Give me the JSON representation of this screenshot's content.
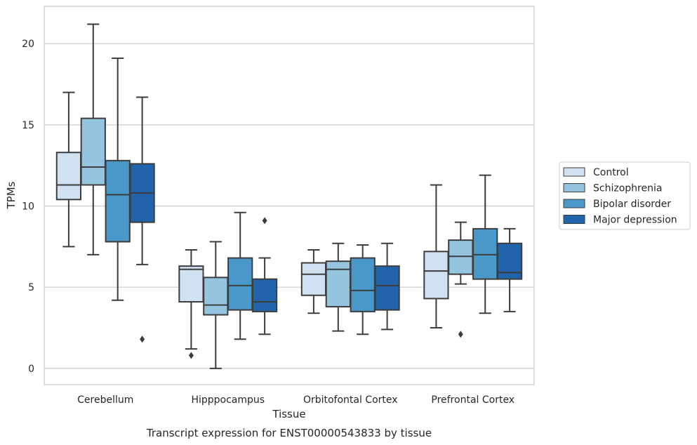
{
  "chart_data": {
    "type": "boxplot",
    "caption": "Transcript expression for ENST00000543833 by tissue",
    "xlabel": "Tissue",
    "ylabel": "TPMs",
    "ylim": [
      -1,
      22.3
    ],
    "yticks": [
      0,
      5,
      10,
      15,
      20
    ],
    "grid": "horizontal",
    "legend_placement": "right",
    "categories": [
      "Cerebellum",
      "Hipppocampus",
      "Orbitofontal Cortex",
      "Prefrontal Cortex"
    ],
    "series": [
      {
        "name": "Control",
        "color": "#d0e1f2",
        "boxes": [
          {
            "whisker_low": 7.5,
            "q1": 10.4,
            "median": 11.3,
            "q3": 13.3,
            "whisker_high": 17.0,
            "outliers": []
          },
          {
            "whisker_low": 1.2,
            "q1": 4.1,
            "median": 6.1,
            "q3": 6.3,
            "whisker_high": 7.3,
            "outliers": [
              0.8
            ]
          },
          {
            "whisker_low": 3.4,
            "q1": 4.5,
            "median": 5.8,
            "q3": 6.5,
            "whisker_high": 7.3,
            "outliers": []
          },
          {
            "whisker_low": 2.5,
            "q1": 4.3,
            "median": 6.0,
            "q3": 7.2,
            "whisker_high": 11.3,
            "outliers": []
          }
        ]
      },
      {
        "name": "Schizophrenia",
        "color": "#94c4df",
        "boxes": [
          {
            "whisker_low": 7.0,
            "q1": 11.3,
            "median": 12.4,
            "q3": 15.4,
            "whisker_high": 21.2,
            "outliers": []
          },
          {
            "whisker_low": 0.0,
            "q1": 3.3,
            "median": 3.9,
            "q3": 5.6,
            "whisker_high": 7.8,
            "outliers": []
          },
          {
            "whisker_low": 2.3,
            "q1": 3.8,
            "median": 6.1,
            "q3": 6.6,
            "whisker_high": 7.7,
            "outliers": []
          },
          {
            "whisker_low": 5.2,
            "q1": 5.8,
            "median": 6.9,
            "q3": 7.9,
            "whisker_high": 9.0,
            "outliers": [
              2.1
            ]
          }
        ]
      },
      {
        "name": "Bipolar disorder",
        "color": "#4a98c9",
        "boxes": [
          {
            "whisker_low": 4.2,
            "q1": 7.8,
            "median": 10.7,
            "q3": 12.8,
            "whisker_high": 19.1,
            "outliers": []
          },
          {
            "whisker_low": 1.8,
            "q1": 3.6,
            "median": 5.1,
            "q3": 6.8,
            "whisker_high": 9.6,
            "outliers": []
          },
          {
            "whisker_low": 2.1,
            "q1": 3.5,
            "median": 4.8,
            "q3": 6.8,
            "whisker_high": 7.6,
            "outliers": []
          },
          {
            "whisker_low": 3.4,
            "q1": 5.5,
            "median": 7.0,
            "q3": 8.6,
            "whisker_high": 11.9,
            "outliers": []
          }
        ]
      },
      {
        "name": "Major depression",
        "color": "#2164ab",
        "boxes": [
          {
            "whisker_low": 6.4,
            "q1": 9.0,
            "median": 10.8,
            "q3": 12.6,
            "whisker_high": 16.7,
            "outliers": [
              1.8
            ]
          },
          {
            "whisker_low": 2.1,
            "q1": 3.5,
            "median": 4.1,
            "q3": 5.5,
            "whisker_high": 6.8,
            "outliers": [
              9.1
            ]
          },
          {
            "whisker_low": 2.4,
            "q1": 3.6,
            "median": 5.1,
            "q3": 6.3,
            "whisker_high": 7.7,
            "outliers": []
          },
          {
            "whisker_low": 3.5,
            "q1": 5.5,
            "median": 5.9,
            "q3": 7.7,
            "whisker_high": 8.6,
            "outliers": []
          }
        ]
      }
    ]
  }
}
